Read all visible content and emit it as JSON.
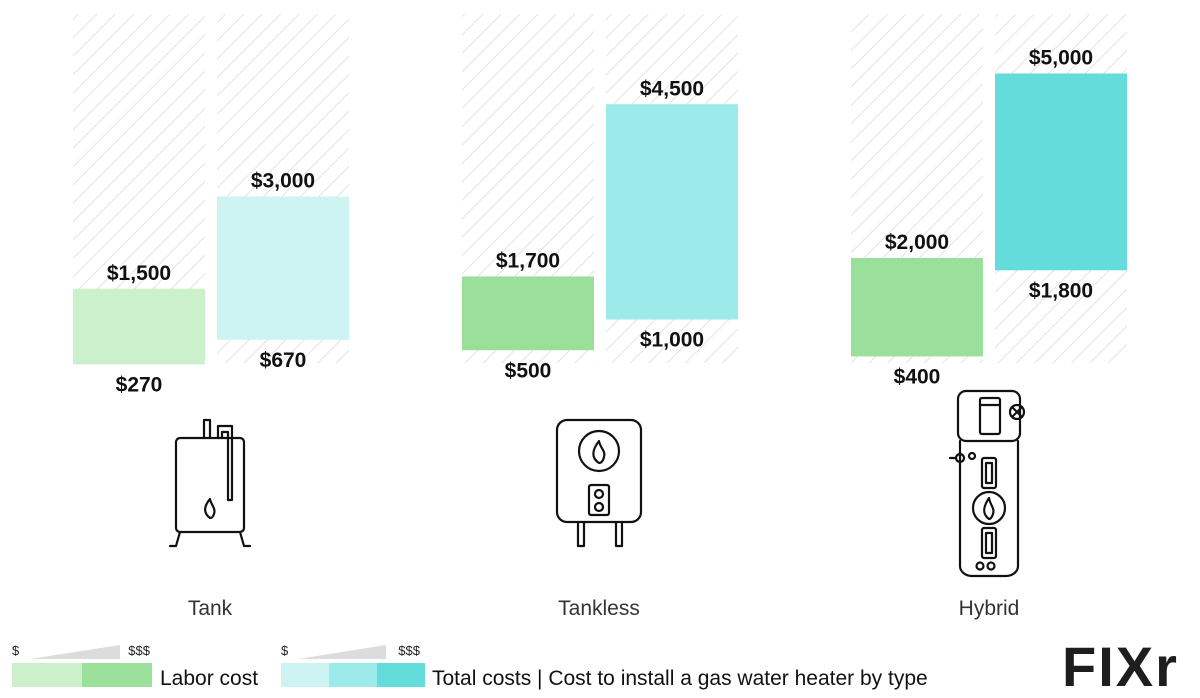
{
  "chart_data": {
    "type": "bar",
    "title": "Cost to install a gas water heater by type",
    "categories": [
      "Tank",
      "Tankless",
      "Hybrid"
    ],
    "series": [
      {
        "name": "Labor cost",
        "low": [
          270,
          500,
          400
        ],
        "high": [
          1500,
          1700,
          2000
        ],
        "low_labels": [
          "$270",
          "$500",
          "$400"
        ],
        "high_labels": [
          "$1,500",
          "$1,700",
          "$2,000"
        ],
        "colors": [
          "#ccefcc",
          "#9adf9a",
          "#9adf9a"
        ]
      },
      {
        "name": "Total costs",
        "low": [
          670,
          1000,
          1800
        ],
        "high": [
          3000,
          4500,
          5000
        ],
        "low_labels": [
          "$670",
          "$1,000",
          "$1,800"
        ],
        "high_labels": [
          "$3,000",
          "$4,500",
          "$5,000"
        ],
        "colors": [
          "#cdf3f3",
          "#9ceaea",
          "#65dcdc"
        ]
      }
    ]
  },
  "legend": {
    "labor_label": "Labor cost",
    "total_label": "Total costs | Cost to install a gas water heater by type",
    "scale_low": "$",
    "scale_high": "$$$",
    "labor_colors": [
      "#ccefcc",
      "#9adf9a"
    ],
    "total_colors": [
      "#cdf3f3",
      "#9ceaea",
      "#65dcdc"
    ]
  },
  "icons": [
    "tank-water-heater-icon",
    "tankless-water-heater-icon",
    "hybrid-water-heater-icon"
  ],
  "brand": {
    "logo": "FIXr"
  }
}
